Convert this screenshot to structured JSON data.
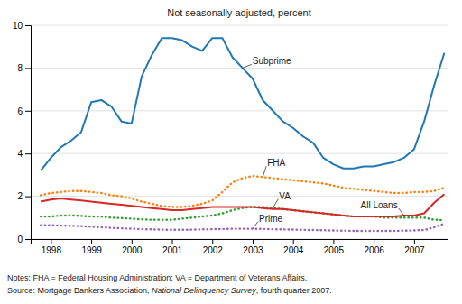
{
  "chart_data": {
    "type": "line",
    "title": "Not seasonally adjusted, percent",
    "notes": "Notes: FHA = Federal Housing Administration; VA = Department of Veterans Affairs.",
    "source": [
      "Source: Mortgage Bankers Association, ",
      "National Delinquency Survey",
      ", fourth quarter 2007."
    ],
    "x": [
      1997.75,
      1998.0,
      1998.25,
      1998.5,
      1998.75,
      1999.0,
      1999.25,
      1999.5,
      1999.75,
      2000.0,
      2000.25,
      2000.5,
      2000.75,
      2001.0,
      2001.25,
      2001.5,
      2001.75,
      2002.0,
      2002.25,
      2002.5,
      2002.75,
      2003.0,
      2003.25,
      2003.5,
      2003.75,
      2004.0,
      2004.25,
      2004.5,
      2004.75,
      2005.0,
      2005.25,
      2005.5,
      2005.75,
      2006.0,
      2006.25,
      2006.5,
      2006.75,
      2007.0,
      2007.25,
      2007.5,
      2007.75
    ],
    "xlim": [
      1997.5,
      2007.83
    ],
    "xticks": [
      1998,
      1999,
      2000,
      2001,
      2002,
      2003,
      2004,
      2005,
      2006,
      2007
    ],
    "ylim": [
      0,
      10
    ],
    "yticks": [
      0,
      2,
      4,
      6,
      8,
      10
    ],
    "grid": true,
    "series": [
      {
        "name": "Subprime",
        "line_style": "solid",
        "values": [
          3.2,
          3.8,
          4.3,
          4.6,
          5.0,
          6.4,
          6.5,
          6.2,
          5.5,
          5.4,
          7.6,
          8.6,
          9.4,
          9.4,
          9.3,
          9.0,
          8.8,
          9.4,
          9.4,
          8.5,
          8.0,
          7.5,
          6.5,
          6.0,
          5.5,
          5.2,
          4.8,
          4.5,
          3.8,
          3.5,
          3.3,
          3.3,
          3.4,
          3.4,
          3.5,
          3.6,
          3.8,
          4.2,
          5.5,
          7.2,
          8.7
        ]
      },
      {
        "name": "FHA",
        "line_style": "dotted",
        "values": [
          2.05,
          2.15,
          2.2,
          2.25,
          2.25,
          2.2,
          2.15,
          2.05,
          2.0,
          1.9,
          1.75,
          1.65,
          1.55,
          1.5,
          1.5,
          1.55,
          1.65,
          1.8,
          2.2,
          2.65,
          2.85,
          2.95,
          2.9,
          2.85,
          2.8,
          2.75,
          2.7,
          2.65,
          2.6,
          2.5,
          2.4,
          2.35,
          2.3,
          2.25,
          2.2,
          2.15,
          2.15,
          2.2,
          2.2,
          2.25,
          2.4
        ]
      },
      {
        "name": "VA",
        "line_style": "dotted",
        "values": [
          1.05,
          1.05,
          1.1,
          1.1,
          1.08,
          1.05,
          1.05,
          1.0,
          0.98,
          0.95,
          0.92,
          0.9,
          0.9,
          0.9,
          0.95,
          1.0,
          1.05,
          1.1,
          1.2,
          1.35,
          1.45,
          1.5,
          1.5,
          1.45,
          1.4,
          1.35,
          1.3,
          1.25,
          1.2,
          1.15,
          1.1,
          1.05,
          1.05,
          1.05,
          1.0,
          1.0,
          1.0,
          1.0,
          1.0,
          0.9,
          0.88
        ]
      },
      {
        "name": "All Loans",
        "line_style": "solid",
        "values": [
          1.75,
          1.85,
          1.9,
          1.85,
          1.8,
          1.75,
          1.7,
          1.65,
          1.6,
          1.55,
          1.5,
          1.45,
          1.4,
          1.35,
          1.35,
          1.4,
          1.45,
          1.5,
          1.5,
          1.5,
          1.5,
          1.5,
          1.45,
          1.4,
          1.4,
          1.35,
          1.3,
          1.25,
          1.2,
          1.15,
          1.1,
          1.05,
          1.05,
          1.05,
          1.05,
          1.05,
          1.1,
          1.1,
          1.2,
          1.7,
          2.1
        ]
      },
      {
        "name": "Prime",
        "line_style": "dotted",
        "values": [
          0.65,
          0.65,
          0.63,
          0.62,
          0.6,
          0.58,
          0.55,
          0.52,
          0.5,
          0.48,
          0.46,
          0.45,
          0.44,
          0.43,
          0.43,
          0.44,
          0.45,
          0.46,
          0.47,
          0.48,
          0.48,
          0.48,
          0.47,
          0.46,
          0.45,
          0.44,
          0.43,
          0.42,
          0.41,
          0.4,
          0.39,
          0.38,
          0.38,
          0.38,
          0.38,
          0.38,
          0.39,
          0.4,
          0.42,
          0.55,
          0.72
        ]
      }
    ]
  }
}
